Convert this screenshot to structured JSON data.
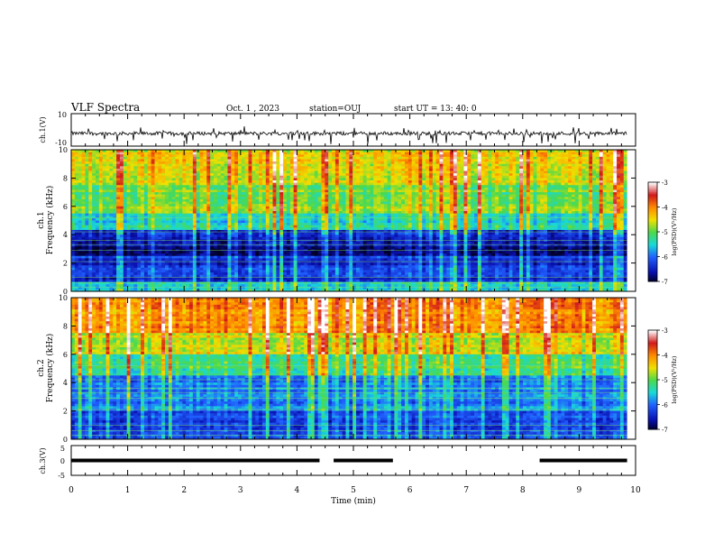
{
  "header": {
    "title": "VLF Spectra",
    "date": "Oct. 1 , 2023",
    "station": "station=OUJ",
    "start": "start  UT =  13: 40: 0"
  },
  "colorbar": {
    "label": "log(PSD)(V²/Hz)",
    "ticks": [
      "-3",
      "-4",
      "-5",
      "-6",
      "-7"
    ],
    "colors": [
      "#ffffff",
      "#d11a1a",
      "#ff8a00",
      "#f0e000",
      "#4cd94c",
      "#18d9d9",
      "#2060ff",
      "#0a10b0",
      "#000020"
    ]
  },
  "chart_data": [
    {
      "type": "line",
      "ylabel": "ch.1(V)",
      "ylim": [
        -10,
        10
      ],
      "yticks": [
        "10",
        "-10"
      ],
      "x_range_min": [
        0,
        9.85
      ],
      "description_level": "noisy signal around -2 V with negative spikes",
      "mean_value": -2.2
    },
    {
      "type": "heatmap",
      "ylabel": "ch.1\nFrequency (kHz)",
      "xlim": [
        0,
        10
      ],
      "ylim": [
        0,
        10
      ],
      "yticks": [
        "0",
        "2",
        "4",
        "6",
        "8",
        "10"
      ],
      "zlim": [
        -7,
        -3
      ],
      "bands": [
        {
          "from": 0,
          "to": 0.6,
          "log_psd": -5.5
        },
        {
          "from": 0.6,
          "to": 2.5,
          "log_psd": -6.3
        },
        {
          "from": 2.5,
          "to": 3.2,
          "log_psd": -6.8
        },
        {
          "from": 3.2,
          "to": 4.3,
          "log_psd": -6.5
        },
        {
          "from": 4.3,
          "to": 5.5,
          "log_psd": -5.4
        },
        {
          "from": 5.5,
          "to": 7.5,
          "log_psd": -4.9
        },
        {
          "from": 7.5,
          "to": 10,
          "log_psd": -4.5
        }
      ]
    },
    {
      "type": "heatmap",
      "ylabel": "ch.2\nFrequency (kHz)",
      "xlim": [
        0,
        10
      ],
      "ylim": [
        0,
        10
      ],
      "yticks": [
        "0",
        "2",
        "4",
        "6",
        "8",
        "10"
      ],
      "zlim": [
        -7,
        -3
      ],
      "bands": [
        {
          "from": 0,
          "to": 2,
          "log_psd": -6.2
        },
        {
          "from": 2,
          "to": 4.5,
          "log_psd": -5.9
        },
        {
          "from": 4.5,
          "to": 6,
          "log_psd": -5.2
        },
        {
          "from": 6,
          "to": 7.5,
          "log_psd": -4.6
        },
        {
          "from": 7.5,
          "to": 10,
          "log_psd": -4.0
        }
      ]
    },
    {
      "type": "line",
      "ylabel": "ch.3(V)",
      "ylim": [
        -5,
        5
      ],
      "yticks": [
        "5",
        "0",
        "-5"
      ],
      "xlabel": "Time  (min)",
      "xlim": [
        0,
        10
      ],
      "xticks": [
        "0",
        "1",
        "2",
        "3",
        "4",
        "5",
        "6",
        "7",
        "8",
        "9",
        "10"
      ],
      "segments": [
        {
          "x0": 0,
          "x1": 4.4,
          "y": 0
        },
        {
          "x0": 4.65,
          "x1": 5.7,
          "y": 0
        },
        {
          "x0": 8.3,
          "x1": 9.85,
          "y": 0
        }
      ]
    }
  ]
}
